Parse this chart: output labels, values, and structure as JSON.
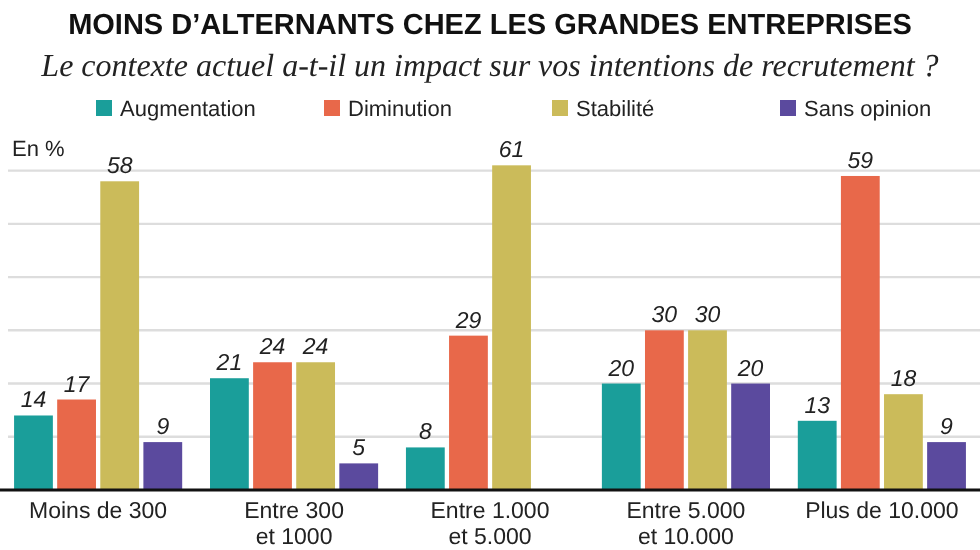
{
  "chart_data": {
    "type": "bar",
    "title": "MOINS D’ALTERNANTS CHEZ LES GRANDES ENTREPRISES",
    "subtitle": "Le contexte actuel a-t-il un impact sur vos intentions de recrutement ?",
    "ylabel": "En %",
    "categories": [
      "Moins de 300",
      "Entre 300\net 1000",
      "Entre 1.000\net 5.000",
      "Entre 5.000\net 10.000",
      "Plus de 10.000"
    ],
    "series": [
      {
        "name": "Augmentation",
        "color": "#1a9e9a",
        "values": [
          14,
          21,
          8,
          20,
          13
        ]
      },
      {
        "name": "Diminution",
        "color": "#e8684a",
        "values": [
          17,
          24,
          29,
          30,
          59
        ]
      },
      {
        "name": "Stabilité",
        "color": "#cbbb5a",
        "values": [
          58,
          24,
          61,
          30,
          18
        ]
      },
      {
        "name": "Sans opinion",
        "color": "#5b4a9e",
        "values": [
          9,
          5,
          null,
          20,
          9
        ]
      }
    ],
    "ylim": [
      0,
      62
    ],
    "yticks": [
      {
        "value": 10,
        "label": null
      },
      {
        "value": 20,
        "label": null
      },
      {
        "value": 30,
        "label": null
      },
      {
        "value": 40,
        "label": null
      },
      {
        "value": 50,
        "label": null
      },
      {
        "value": 60,
        "label": null
      }
    ],
    "tick_labels": "x",
    "grid": "y",
    "legend": "top",
    "data_labels": true
  }
}
